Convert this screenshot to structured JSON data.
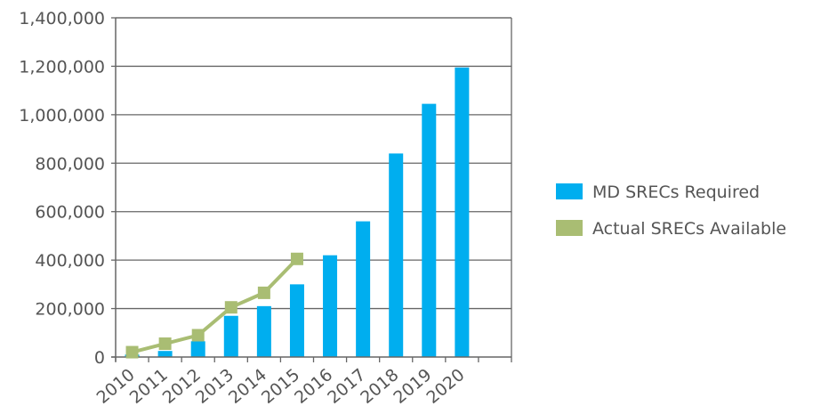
{
  "chart_data": {
    "type": "bar",
    "categories": [
      "2010",
      "2011",
      "2012",
      "2013",
      "2014",
      "2015",
      "2016",
      "2017",
      "2018",
      "2019",
      "2020"
    ],
    "ylim": [
      0,
      1400000
    ],
    "yticks": [
      0,
      200000,
      400000,
      600000,
      800000,
      1000000,
      1200000,
      1400000
    ],
    "ytick_labels": [
      "0",
      "200,000",
      "400,000",
      "600,000",
      "800,000",
      "1,000,000",
      "1,200,000",
      "1,400,000"
    ],
    "grid": true,
    "legend_position": "right",
    "series": [
      {
        "name": "MD SRECs Required",
        "type": "bar",
        "color": "#00aeef",
        "values": [
          10000,
          25000,
          65000,
          170000,
          210000,
          300000,
          420000,
          560000,
          840000,
          1045000,
          1195000
        ]
      },
      {
        "name": "Actual SRECs Available",
        "type": "line",
        "marker": "square",
        "color": "#a9bd73",
        "values": [
          20000,
          55000,
          90000,
          205000,
          265000,
          405000,
          null,
          null,
          null,
          null,
          null
        ]
      }
    ]
  }
}
